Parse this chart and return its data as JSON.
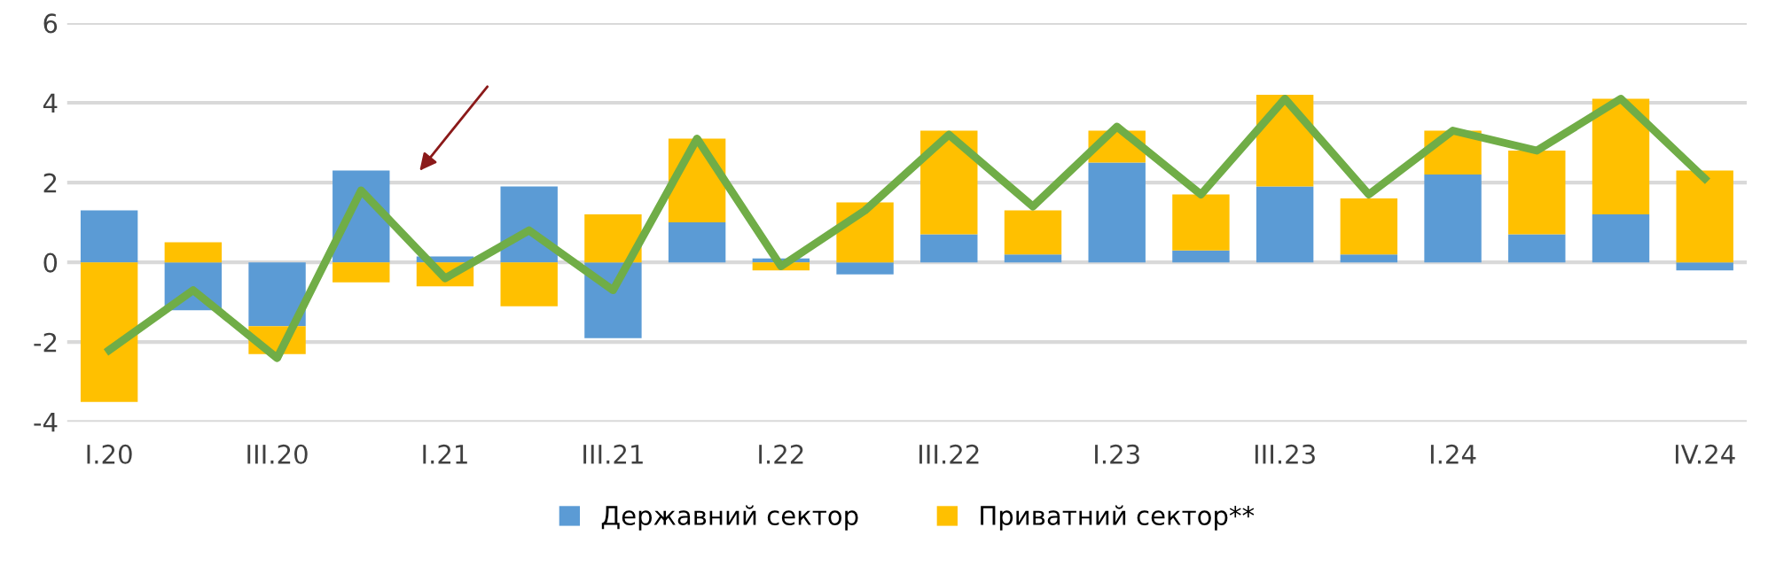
{
  "chart_data": {
    "type": "bar",
    "stacked": true,
    "categories": [
      "I.20",
      null,
      "III.20",
      null,
      "I.21",
      null,
      "III.21",
      null,
      "I.22",
      null,
      "III.22",
      null,
      "I.23",
      null,
      "III.23",
      null,
      "I.24",
      null,
      null,
      "IV.24"
    ],
    "series": [
      {
        "name": "Державний сектор",
        "color": "#5b9bd5",
        "values": [
          1.3,
          -1.2,
          -1.6,
          2.3,
          0.15,
          1.9,
          -1.9,
          1.0,
          0.1,
          -0.3,
          0.7,
          0.2,
          2.5,
          0.3,
          1.9,
          0.2,
          2.2,
          0.7,
          1.2,
          -0.2
        ]
      },
      {
        "name": "Приватний сектор**",
        "color": "#ffc000",
        "values": [
          -3.5,
          0.5,
          -0.7,
          -0.5,
          -0.6,
          -1.1,
          1.2,
          2.1,
          -0.2,
          1.5,
          2.6,
          1.1,
          0.8,
          1.4,
          2.3,
          1.4,
          1.1,
          2.1,
          2.9,
          2.3
        ]
      },
      {
        "type": "line",
        "color": "#70ad47",
        "line_style": "solid",
        "marker": "none",
        "values": [
          -2.2,
          -0.7,
          -2.4,
          1.8,
          -0.4,
          0.8,
          -0.7,
          3.1,
          -0.1,
          1.3,
          3.2,
          1.4,
          3.4,
          1.7,
          4.1,
          1.7,
          3.3,
          2.8,
          4.1,
          2.1
        ]
      }
    ],
    "ylim": [
      -4,
      6
    ],
    "yticks": [
      -4,
      -2,
      0,
      2,
      4,
      6
    ],
    "grid": "y",
    "legend": "bottom"
  }
}
